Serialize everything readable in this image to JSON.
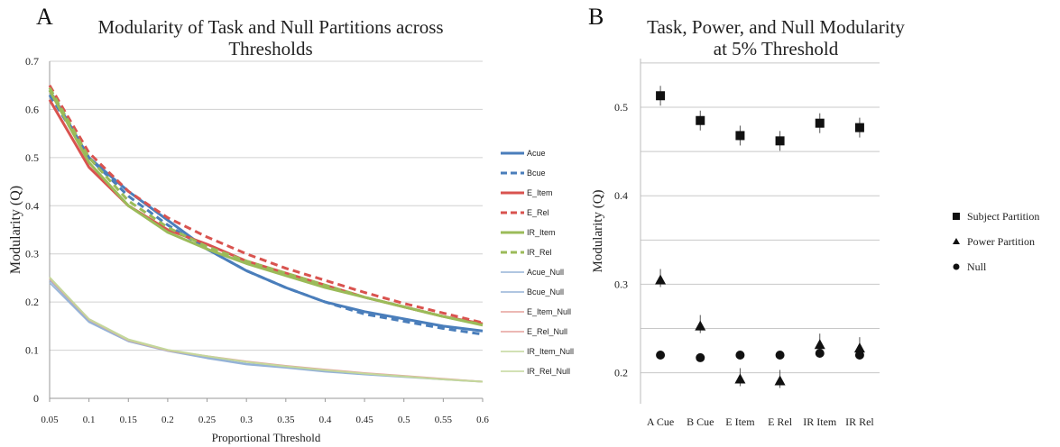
{
  "chart_data": [
    {
      "panel_label": "A",
      "type": "line",
      "title": "Modularity of Task and Null Partitions across Thresholds",
      "title_lines": [
        "Modularity of Task and Null Partitions across",
        "Thresholds"
      ],
      "xlabel": "Proportional Threshold",
      "ylabel": "Modularity (Q)",
      "ylim": [
        0,
        0.7
      ],
      "xlim": [
        0.05,
        0.6
      ],
      "y_ticks": [
        "0",
        "0.1",
        "0.2",
        "0.3",
        "0.4",
        "0.5",
        "0.6",
        "0.7"
      ],
      "x": [
        0.05,
        0.1,
        0.15,
        0.2,
        0.25,
        0.3,
        0.35,
        0.4,
        0.45,
        0.5,
        0.55,
        0.6
      ],
      "x_tick_labels": [
        "0.05",
        "0.1",
        "0.15",
        "0.2",
        "0.25",
        "0.3",
        "0.35",
        "0.4",
        "0.45",
        "0.5",
        "0.55",
        "0.6"
      ],
      "grid": true,
      "legend_position": "right",
      "series": [
        {
          "name": "Acue",
          "color": "#4a7ebb",
          "dash": false,
          "width": 3,
          "values": [
            0.64,
            0.5,
            0.43,
            0.37,
            0.31,
            0.265,
            0.23,
            0.2,
            0.18,
            0.165,
            0.15,
            0.14
          ]
        },
        {
          "name": "Bcue",
          "color": "#4a7ebb",
          "dash": true,
          "width": 3,
          "values": [
            0.63,
            0.5,
            0.42,
            0.36,
            0.31,
            0.265,
            0.23,
            0.2,
            0.175,
            0.16,
            0.145,
            0.133
          ]
        },
        {
          "name": "E_Item",
          "color": "#d9534f",
          "dash": false,
          "width": 3,
          "values": [
            0.62,
            0.48,
            0.4,
            0.35,
            0.32,
            0.285,
            0.26,
            0.235,
            0.21,
            0.19,
            0.17,
            0.155
          ]
        },
        {
          "name": "E_Rel",
          "color": "#d9534f",
          "dash": true,
          "width": 3,
          "values": [
            0.65,
            0.51,
            0.43,
            0.375,
            0.335,
            0.3,
            0.27,
            0.245,
            0.22,
            0.197,
            0.177,
            0.157
          ]
        },
        {
          "name": "IR_Item",
          "color": "#9bbb59",
          "dash": false,
          "width": 3,
          "values": [
            0.64,
            0.49,
            0.4,
            0.345,
            0.31,
            0.28,
            0.255,
            0.23,
            0.21,
            0.19,
            0.17,
            0.152
          ]
        },
        {
          "name": "IR_Rel",
          "color": "#9bbb59",
          "dash": true,
          "width": 3,
          "values": [
            0.645,
            0.5,
            0.41,
            0.355,
            0.315,
            0.285,
            0.26,
            0.235,
            0.21,
            0.19,
            0.17,
            0.153
          ]
        },
        {
          "name": "Acue_Null",
          "color": "#95b3d7",
          "dash": false,
          "width": 1.5,
          "values": [
            0.245,
            0.16,
            0.12,
            0.1,
            0.085,
            0.072,
            0.065,
            0.057,
            0.05,
            0.045,
            0.04,
            0.035
          ]
        },
        {
          "name": "Bcue_Null",
          "color": "#95b3d7",
          "dash": false,
          "width": 1.5,
          "values": [
            0.24,
            0.158,
            0.118,
            0.098,
            0.083,
            0.07,
            0.063,
            0.055,
            0.049,
            0.044,
            0.039,
            0.034
          ]
        },
        {
          "name": "E_Item_Null",
          "color": "#e6a09c",
          "dash": false,
          "width": 1.5,
          "values": [
            0.25,
            0.165,
            0.122,
            0.1,
            0.088,
            0.077,
            0.068,
            0.06,
            0.053,
            0.047,
            0.041,
            0.035
          ]
        },
        {
          "name": "E_Rel_Null",
          "color": "#e6a09c",
          "dash": false,
          "width": 1.5,
          "values": [
            0.248,
            0.163,
            0.12,
            0.099,
            0.087,
            0.076,
            0.067,
            0.059,
            0.052,
            0.046,
            0.04,
            0.034
          ]
        },
        {
          "name": "IR_Item_Null",
          "color": "#c4d79b",
          "dash": false,
          "width": 1.5,
          "values": [
            0.252,
            0.165,
            0.123,
            0.101,
            0.088,
            0.076,
            0.067,
            0.059,
            0.052,
            0.046,
            0.04,
            0.035
          ]
        },
        {
          "name": "IR_Rel_Null",
          "color": "#c4d79b",
          "dash": false,
          "width": 1.5,
          "values": [
            0.25,
            0.164,
            0.121,
            0.1,
            0.087,
            0.075,
            0.066,
            0.058,
            0.051,
            0.045,
            0.039,
            0.034
          ]
        }
      ]
    },
    {
      "panel_label": "B",
      "type": "scatter",
      "title": "Task, Power, and Null Modularity at 5% Threshold",
      "title_lines": [
        "Task, Power, and Null Modularity",
        "at 5% Threshold"
      ],
      "xlabel": "",
      "ylabel": "Modularity (Q)",
      "categories": [
        "A Cue",
        "B Cue",
        "E Item",
        "E Rel",
        "IR Item",
        "IR Rel"
      ],
      "y_ticks": [
        "0.2",
        "0.3",
        "0.4",
        "0.5"
      ],
      "ylim": [
        0.165,
        0.555
      ],
      "grid": true,
      "legend_position": "right",
      "series": [
        {
          "name": "Subject Partition",
          "marker": "square",
          "values": [
            0.513,
            0.485,
            0.468,
            0.462,
            0.482,
            0.477
          ]
        },
        {
          "name": "Power Partition",
          "marker": "triangle",
          "values": [
            0.305,
            0.253,
            0.193,
            0.191,
            0.232,
            0.228
          ]
        },
        {
          "name": "Null",
          "marker": "circle",
          "values": [
            0.22,
            0.217,
            0.22,
            0.22,
            0.222,
            0.22
          ]
        }
      ]
    }
  ]
}
